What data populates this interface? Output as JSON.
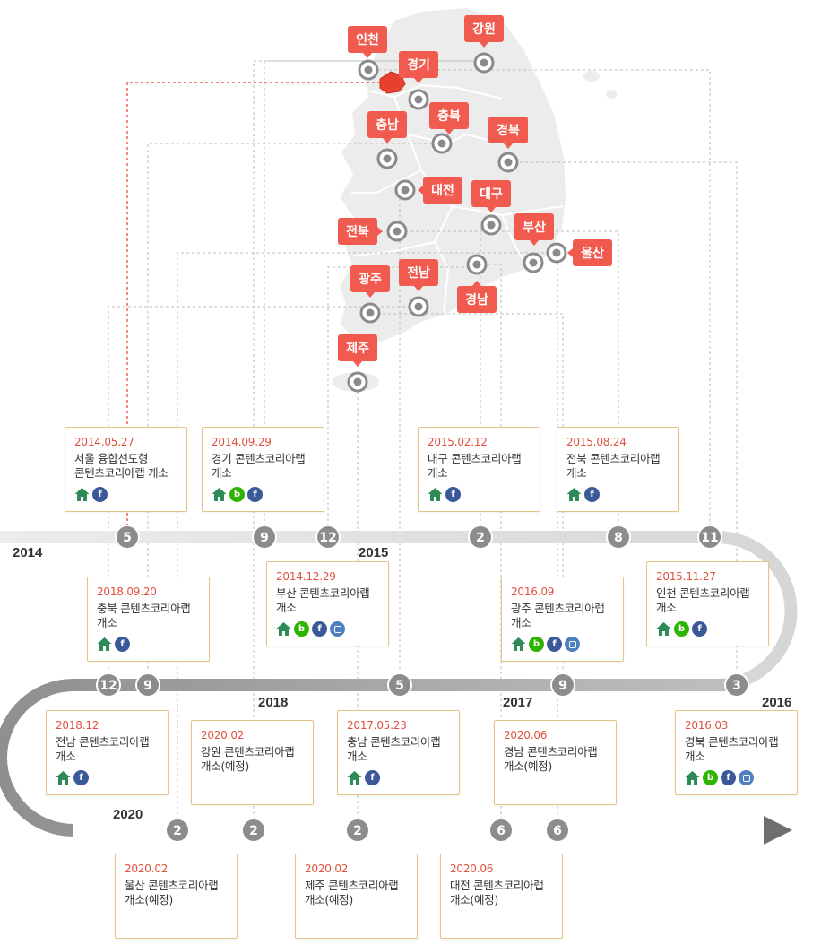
{
  "regions": [
    {
      "name": "인천",
      "label": "인천"
    },
    {
      "name": "강원",
      "label": "강원"
    },
    {
      "name": "경기",
      "label": "경기"
    },
    {
      "name": "충남",
      "label": "충남"
    },
    {
      "name": "충북",
      "label": "충북"
    },
    {
      "name": "경북",
      "label": "경북"
    },
    {
      "name": "대전",
      "label": "대전"
    },
    {
      "name": "대구",
      "label": "대구"
    },
    {
      "name": "전북",
      "label": "전북"
    },
    {
      "name": "부산",
      "label": "부산"
    },
    {
      "name": "울산",
      "label": "울산"
    },
    {
      "name": "광주",
      "label": "광주"
    },
    {
      "name": "전남",
      "label": "전남"
    },
    {
      "name": "경남",
      "label": "경남"
    },
    {
      "name": "제주",
      "label": "제주"
    }
  ],
  "years": {
    "y2014": "2014",
    "y2015": "2015",
    "y2016": "2016",
    "y2017": "2017",
    "y2018": "2018",
    "y2020": "2020"
  },
  "markers": {
    "row1": [
      "5",
      "9",
      "12",
      "2",
      "8",
      "11"
    ],
    "row2": [
      "12",
      "9",
      "5",
      "9",
      "3"
    ],
    "row3": [
      "2",
      "2",
      "2",
      "6",
      "6"
    ]
  },
  "cards": [
    {
      "date": "2014.05.27",
      "text": "서울 융합선도형\n콘텐츠코리아랩 개소",
      "icons": [
        "home",
        "fb"
      ]
    },
    {
      "date": "2014.09.29",
      "text": "경기 콘텐츠코리아랩\n개소",
      "icons": [
        "home",
        "blog",
        "fb"
      ]
    },
    {
      "date": "2015.02.12",
      "text": "대구 콘텐츠코리아랩\n개소",
      "icons": [
        "home",
        "fb"
      ]
    },
    {
      "date": "2015.08.24",
      "text": "전북 콘텐츠코리아랩\n개소",
      "icons": [
        "home",
        "fb"
      ]
    },
    {
      "date": "2018.09.20",
      "text": "충북 콘텐츠코리아랩\n개소",
      "icons": [
        "home",
        "fb"
      ]
    },
    {
      "date": "2014.12.29",
      "text": "부산 콘텐츠코리아랩\n개소",
      "icons": [
        "home",
        "blog",
        "fb",
        "insta"
      ]
    },
    {
      "date": "2016.09",
      "text": "광주 콘텐츠코리아랩\n개소",
      "icons": [
        "home",
        "blog",
        "fb",
        "insta"
      ]
    },
    {
      "date": "2015.11.27",
      "text": "인천 콘텐츠코리아랩\n개소",
      "icons": [
        "home",
        "blog",
        "fb"
      ]
    },
    {
      "date": "2018.12",
      "text": "전남 콘텐츠코리아랩\n개소",
      "icons": [
        "home",
        "fb"
      ]
    },
    {
      "date": "2020.02",
      "text": "강원 콘텐츠코리아랩\n개소(예정)",
      "icons": []
    },
    {
      "date": "2017.05.23",
      "text": "충남 콘텐츠코리아랩\n개소",
      "icons": [
        "home",
        "fb"
      ]
    },
    {
      "date": "2020.06",
      "text": "경남 콘텐츠코리아랩\n개소(예정)",
      "icons": []
    },
    {
      "date": "2016.03",
      "text": "경북 콘텐츠코리아랩\n개소",
      "icons": [
        "home",
        "blog",
        "fb",
        "insta"
      ]
    },
    {
      "date": "2020.02",
      "text": "울산 콘텐츠코리아랩\n개소(예정)",
      "icons": []
    },
    {
      "date": "2020.02",
      "text": "제주 콘텐츠코리아랩\n개소(예정)",
      "icons": []
    },
    {
      "date": "2020.06",
      "text": "대전 콘텐츠코리아랩\n개소(예정)",
      "icons": []
    }
  ],
  "colors": {
    "label_red": "#f15a4f",
    "date_red": "#e0513f",
    "card_border": "#e6c487",
    "track_gray": "#9a9a9a",
    "marker_gray": "#8c8c8c",
    "map_gray": "#ececec",
    "seoul_red": "#e8402f"
  }
}
